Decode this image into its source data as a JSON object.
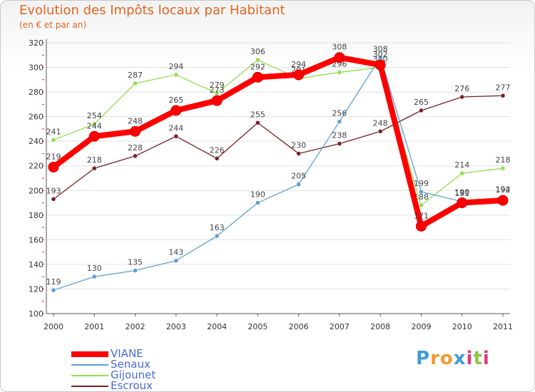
{
  "chart_data": {
    "type": "line",
    "title": "Evolution des Impôts locaux par Habitant",
    "subtitle": "(en € et par an)",
    "xlabel": "",
    "ylabel": "",
    "ylim": [
      100,
      320
    ],
    "yticks": [
      100,
      120,
      140,
      160,
      180,
      200,
      220,
      240,
      260,
      280,
      300,
      320
    ],
    "categories": [
      "2000",
      "2001",
      "2002",
      "2003",
      "2004",
      "2005",
      "2006",
      "2007",
      "2008",
      "2009",
      "2010",
      "2011"
    ],
    "series": [
      {
        "name": "Escroux",
        "color": "#7a1f22",
        "values": [
          193,
          218,
          228,
          244,
          226,
          255,
          230,
          238,
          248,
          265,
          276,
          277
        ]
      },
      {
        "name": "Gijounet",
        "color": "#8fe04a",
        "values": [
          241,
          254,
          287,
          294,
          279,
          306,
          291,
          296,
          300,
          188,
          214,
          218
        ]
      },
      {
        "name": "Senaux",
        "color": "#5b9fd8",
        "values": [
          119,
          130,
          135,
          143,
          163,
          190,
          205,
          256,
          308,
          199,
          191,
          194
        ]
      },
      {
        "name": "VIANE",
        "color": "#ff0000",
        "values": [
          219,
          244,
          248,
          265,
          273,
          292,
          294,
          308,
          302,
          171,
          190,
          192
        ]
      }
    ],
    "legend": [
      "VIANE",
      "Senaux",
      "Gijounet",
      "Escroux"
    ],
    "grid": "horizontal",
    "legend_position": "bottom-left"
  },
  "branding": {
    "logo_letters": [
      "P",
      "r",
      "o",
      "x",
      "i",
      "t",
      "i"
    ],
    "logo_colors": [
      "#3f9bd9",
      "#f29a2e",
      "#f29a2e",
      "#3f9bd9",
      "#e23b7b",
      "#8cc63f",
      "#e23b7b"
    ]
  }
}
